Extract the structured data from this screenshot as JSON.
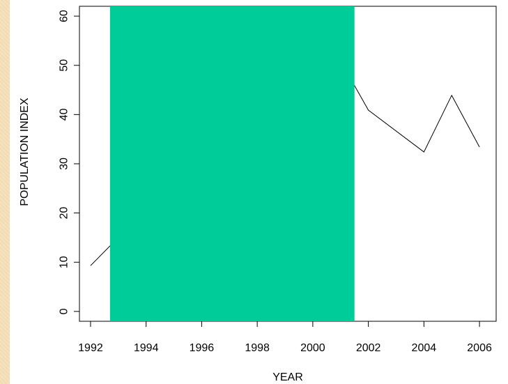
{
  "chart_data": {
    "type": "line",
    "xlabel": "YEAR",
    "ylabel": "POPULATION INDEX",
    "xlim": [
      1991.6,
      2006.6
    ],
    "ylim": [
      -2,
      62
    ],
    "x_ticks": [
      1992,
      1994,
      1996,
      1998,
      2000,
      2002,
      2004,
      2006
    ],
    "y_ticks": [
      0,
      10,
      20,
      30,
      40,
      50,
      60
    ],
    "series": [
      {
        "x": [
          1992,
          1992.7,
          2001.5,
          2002,
          2004,
          2005,
          2006
        ],
        "values": [
          9.3,
          13.3,
          45.9,
          40.9,
          32.4,
          43.9,
          33.4
        ]
      }
    ],
    "occluder": {
      "x_range": [
        1992.7,
        2001.5
      ],
      "y_range": [
        -2,
        62
      ],
      "color": "#00cc99"
    },
    "colors": {
      "line": "#000000",
      "axes": "#000000",
      "background": "#ffffff"
    }
  }
}
